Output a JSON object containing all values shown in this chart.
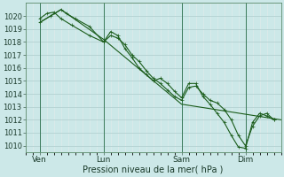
{
  "xlabel": "Pression niveau de la mer( hPa )",
  "bg_color": "#cce8e8",
  "grid_major_color": "#aacccc",
  "grid_minor_color": "#ddeaea",
  "line_color": "#1a5c1a",
  "ylim": [
    1009.5,
    1021.0
  ],
  "yticks": [
    1010,
    1011,
    1012,
    1013,
    1014,
    1015,
    1016,
    1017,
    1018,
    1019,
    1020
  ],
  "xlim": [
    0,
    144
  ],
  "xtick_labels": [
    "Ven",
    "Lun",
    "Sam",
    "Dim"
  ],
  "xtick_positions": [
    8,
    44,
    88,
    124
  ],
  "vline_positions": [
    8,
    44,
    88,
    124
  ],
  "line1_x": [
    8,
    14,
    20,
    23,
    28,
    36,
    44,
    48,
    52,
    56,
    60,
    64,
    68,
    72,
    76,
    80,
    84,
    88,
    92,
    96,
    100,
    104,
    108,
    112,
    116,
    120,
    124,
    128,
    132,
    136,
    140
  ],
  "line1_y": [
    1019.5,
    1020.0,
    1020.5,
    1020.2,
    1019.8,
    1019.2,
    1018.0,
    1018.5,
    1018.3,
    1017.8,
    1017.0,
    1016.5,
    1015.8,
    1015.2,
    1014.8,
    1014.3,
    1013.8,
    1013.5,
    1014.5,
    1014.6,
    1014.0,
    1013.5,
    1013.3,
    1012.8,
    1012.0,
    1010.8,
    1010.0,
    1011.5,
    1012.3,
    1012.5,
    1012.0
  ],
  "line2_x": [
    8,
    12,
    16,
    20,
    26,
    36,
    44,
    48,
    52,
    56,
    60,
    64,
    68,
    72,
    76,
    80,
    84,
    88,
    92,
    96,
    100,
    104,
    108,
    112,
    116,
    120,
    124,
    128,
    132,
    136,
    140
  ],
  "line2_y": [
    1019.8,
    1020.2,
    1020.3,
    1019.8,
    1019.3,
    1018.5,
    1018.0,
    1018.8,
    1018.5,
    1017.5,
    1016.8,
    1016.0,
    1015.5,
    1015.0,
    1015.2,
    1014.8,
    1014.2,
    1013.7,
    1014.8,
    1014.8,
    1013.8,
    1013.2,
    1012.5,
    1011.8,
    1010.8,
    1009.9,
    1009.8,
    1011.8,
    1012.5,
    1012.3,
    1012.0
  ],
  "line3_x": [
    8,
    20,
    44,
    88,
    144
  ],
  "line3_y": [
    1019.5,
    1020.5,
    1018.2,
    1013.2,
    1012.0
  ]
}
